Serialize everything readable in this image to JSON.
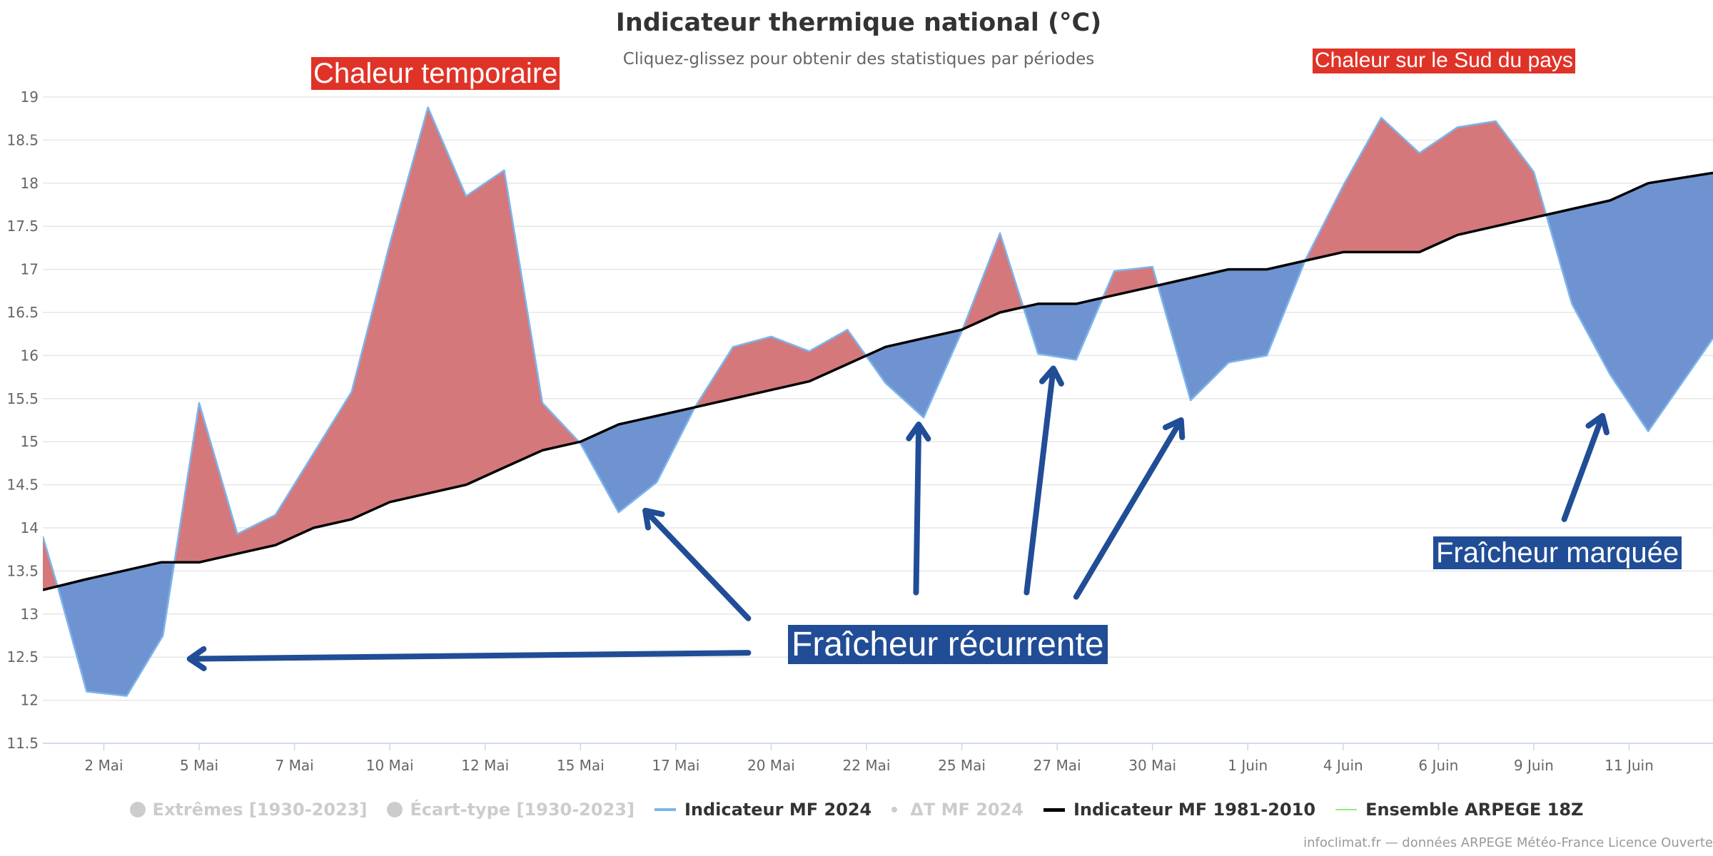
{
  "chart_data": {
    "type": "area",
    "title": "Indicateur thermique national (°C)",
    "subtitle": "Cliquez-glissez pour obtenir des statistiques par périodes",
    "ylim": [
      11.5,
      19
    ],
    "yticks": [
      11.5,
      12,
      12.5,
      13,
      13.5,
      14,
      14.5,
      15,
      15.5,
      16,
      16.5,
      17,
      17.5,
      18,
      18.5,
      19
    ],
    "xlim": [
      0,
      43.8
    ],
    "xticks": [
      {
        "day": 1.6,
        "label": "2 Mai"
      },
      {
        "day": 4.1,
        "label": "5 Mai"
      },
      {
        "day": 6.6,
        "label": "7 Mai"
      },
      {
        "day": 9.1,
        "label": "10 Mai"
      },
      {
        "day": 11.6,
        "label": "12 Mai"
      },
      {
        "day": 14.1,
        "label": "15 Mai"
      },
      {
        "day": 16.6,
        "label": "17 Mai"
      },
      {
        "day": 19.1,
        "label": "20 Mai"
      },
      {
        "day": 21.6,
        "label": "22 Mai"
      },
      {
        "day": 24.1,
        "label": "25 Mai"
      },
      {
        "day": 26.6,
        "label": "27 Mai"
      },
      {
        "day": 29.1,
        "label": "30 Mai"
      },
      {
        "day": 31.6,
        "label": "1 Juin"
      },
      {
        "day": 34.1,
        "label": "4 Juin"
      },
      {
        "day": 36.6,
        "label": "6 Juin"
      },
      {
        "day": 39.1,
        "label": "9 Juin"
      },
      {
        "day": 41.6,
        "label": "11 Juin"
      }
    ],
    "grid": true,
    "legend_position": "bottom-center",
    "series": [
      {
        "name": "Indicateur MF 2024",
        "color": "#7cb5ec",
        "points": [
          [
            0,
            13.9
          ],
          [
            0.4,
            13.3
          ],
          [
            1.15,
            12.1
          ],
          [
            2.2,
            12.05
          ],
          [
            3.15,
            12.75
          ],
          [
            4.1,
            15.45
          ],
          [
            5.1,
            13.93
          ],
          [
            6.1,
            14.15
          ],
          [
            8.1,
            15.58
          ],
          [
            9.1,
            17.3
          ],
          [
            10.1,
            18.88
          ],
          [
            11.1,
            17.85
          ],
          [
            12.1,
            18.15
          ],
          [
            13.1,
            15.45
          ],
          [
            14.1,
            14.98
          ],
          [
            15.1,
            14.18
          ],
          [
            16.1,
            14.53
          ],
          [
            17.1,
            15.4
          ],
          [
            18.1,
            16.1
          ],
          [
            19.1,
            16.22
          ],
          [
            20.1,
            16.05
          ],
          [
            21.1,
            16.3
          ],
          [
            22.1,
            15.68
          ],
          [
            23.1,
            15.28
          ],
          [
            24.1,
            16.28
          ],
          [
            25.1,
            17.42
          ],
          [
            26.1,
            16.02
          ],
          [
            27.1,
            15.95
          ],
          [
            28.1,
            16.98
          ],
          [
            29.1,
            17.03
          ],
          [
            30.1,
            15.48
          ],
          [
            31.1,
            15.92
          ],
          [
            32.1,
            16.0
          ],
          [
            33.1,
            17.1
          ],
          [
            34.1,
            17.97
          ],
          [
            35.1,
            18.76
          ],
          [
            36.1,
            18.35
          ],
          [
            37.1,
            18.65
          ],
          [
            38.1,
            18.72
          ],
          [
            39.1,
            18.13
          ],
          [
            40.1,
            16.6
          ],
          [
            41.1,
            15.78
          ],
          [
            42.1,
            15.12
          ],
          [
            43.8,
            16.2
          ]
        ]
      },
      {
        "name": "Indicateur MF 1981-2010",
        "color": "#000000",
        "points": [
          [
            0,
            13.28
          ],
          [
            1.1,
            13.4
          ],
          [
            2.1,
            13.5
          ],
          [
            3.1,
            13.6
          ],
          [
            4.1,
            13.6
          ],
          [
            5.1,
            13.7
          ],
          [
            6.1,
            13.8
          ],
          [
            7.1,
            14.0
          ],
          [
            8.1,
            14.1
          ],
          [
            9.1,
            14.3
          ],
          [
            10.1,
            14.4
          ],
          [
            11.1,
            14.5
          ],
          [
            12.1,
            14.7
          ],
          [
            13.1,
            14.9
          ],
          [
            14.1,
            15.0
          ],
          [
            15.1,
            15.2
          ],
          [
            16.1,
            15.3
          ],
          [
            17.1,
            15.4
          ],
          [
            18.1,
            15.5
          ],
          [
            19.1,
            15.6
          ],
          [
            20.1,
            15.7
          ],
          [
            21.1,
            15.9
          ],
          [
            22.1,
            16.1
          ],
          [
            23.1,
            16.2
          ],
          [
            24.1,
            16.3
          ],
          [
            25.1,
            16.5
          ],
          [
            26.1,
            16.6
          ],
          [
            27.1,
            16.6
          ],
          [
            28.1,
            16.7
          ],
          [
            29.1,
            16.8
          ],
          [
            30.1,
            16.9
          ],
          [
            31.1,
            17.0
          ],
          [
            32.1,
            17.0
          ],
          [
            33.1,
            17.1
          ],
          [
            34.1,
            17.2
          ],
          [
            35.1,
            17.2
          ],
          [
            36.1,
            17.2
          ],
          [
            37.1,
            17.4
          ],
          [
            38.1,
            17.5
          ],
          [
            39.1,
            17.6
          ],
          [
            40.1,
            17.7
          ],
          [
            41.1,
            17.8
          ],
          [
            42.1,
            18.0
          ],
          [
            43.8,
            18.12
          ]
        ]
      }
    ],
    "fill_above_color": "#d4787c",
    "fill_below_color": "#6f93d0",
    "arrows": [
      {
        "from": [
          18.5,
          12.55
        ],
        "to": [
          3.85,
          12.48
        ]
      },
      {
        "from": [
          18.5,
          12.95
        ],
        "to": [
          15.8,
          14.2
        ]
      },
      {
        "from": [
          22.9,
          13.25
        ],
        "to": [
          22.97,
          15.2
        ]
      },
      {
        "from": [
          25.8,
          13.25
        ],
        "to": [
          26.5,
          15.85
        ]
      },
      {
        "from": [
          27.1,
          13.2
        ],
        "to": [
          29.85,
          15.25
        ]
      },
      {
        "from": [
          39.9,
          14.1
        ],
        "to": [
          40.9,
          15.3
        ]
      }
    ],
    "annotations": [
      {
        "text": "Chaleur temporaire",
        "style": "red"
      },
      {
        "text": "Chaleur sur le Sud du pays",
        "style": "red"
      },
      {
        "text": "Fraîcheur récurrente",
        "style": "blue"
      },
      {
        "text": "Fraîcheur marquée",
        "style": "blue"
      }
    ],
    "legend": [
      {
        "label": "Extrêmes [1930-2023]",
        "symbol": "dot",
        "state": "hidden"
      },
      {
        "label": "Écart-type [1930-2023]",
        "symbol": "dot",
        "state": "hidden"
      },
      {
        "label": "Indicateur MF 2024",
        "symbol": "line",
        "color": "#7cb5ec",
        "state": "visible"
      },
      {
        "label": "ΔT MF 2024",
        "symbol": "small-dot",
        "state": "hidden"
      },
      {
        "label": "Indicateur MF 1981-2010",
        "symbol": "line",
        "color": "#000000",
        "state": "visible"
      },
      {
        "label": "Ensemble ARPEGE 18Z",
        "symbol": "line",
        "color": "#90ed7d",
        "state": "visible"
      }
    ],
    "credits": "infoclimat.fr — données ARPEGE Météo-France Licence Ouverte"
  }
}
